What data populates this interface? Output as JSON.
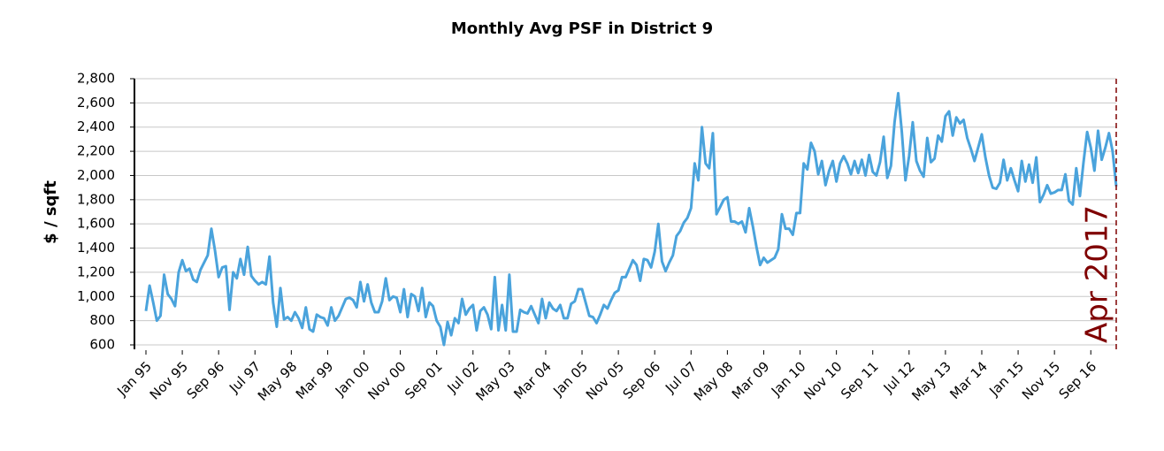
{
  "chart_data": {
    "type": "line",
    "title": "Monthly Avg PSF in District 9",
    "y_label": "$ / sqft",
    "annotation": "Apr 2017",
    "color": "#4aa3dc",
    "annotation_color": "#7f0000",
    "grid": true,
    "ylim": [
      600,
      2800
    ],
    "yticks": [
      600,
      800,
      {
        "value": 1000,
        "label": "1,000"
      },
      {
        "value": 1200,
        "label": "1,200"
      },
      {
        "value": 1400,
        "label": "1,400"
      },
      {
        "value": 1600,
        "label": "1,600"
      },
      {
        "value": 1800,
        "label": "1,800"
      },
      {
        "value": 2000,
        "label": "2,000"
      },
      {
        "value": 2200,
        "label": "2,200"
      },
      {
        "value": 2400,
        "label": "2,400"
      },
      {
        "value": 2600,
        "label": "2,600"
      },
      {
        "value": 2800,
        "label": "2,800"
      }
    ],
    "categories": [
      "Jan 95",
      null,
      null,
      null,
      null,
      null,
      null,
      null,
      null,
      null,
      "Nov 95",
      null,
      null,
      null,
      null,
      null,
      null,
      null,
      null,
      null,
      "Sep 96",
      null,
      null,
      null,
      null,
      null,
      null,
      null,
      null,
      null,
      "Jul 97",
      null,
      null,
      null,
      null,
      null,
      null,
      null,
      null,
      null,
      "May 98",
      null,
      null,
      null,
      null,
      null,
      null,
      null,
      null,
      null,
      "Mar 99",
      null,
      null,
      null,
      null,
      null,
      null,
      null,
      null,
      null,
      "Jan 00",
      null,
      null,
      null,
      null,
      null,
      null,
      null,
      null,
      null,
      "Nov 00",
      null,
      null,
      null,
      null,
      null,
      null,
      null,
      null,
      null,
      "Sep 01",
      null,
      null,
      null,
      null,
      null,
      null,
      null,
      null,
      null,
      "Jul 02",
      null,
      null,
      null,
      null,
      null,
      null,
      null,
      null,
      null,
      "May 03",
      null,
      null,
      null,
      null,
      null,
      null,
      null,
      null,
      null,
      "Mar 04",
      null,
      null,
      null,
      null,
      null,
      null,
      null,
      null,
      null,
      "Jan 05",
      null,
      null,
      null,
      null,
      null,
      null,
      null,
      null,
      null,
      "Nov 05",
      null,
      null,
      null,
      null,
      null,
      null,
      null,
      null,
      null,
      "Sep 06",
      null,
      null,
      null,
      null,
      null,
      null,
      null,
      null,
      null,
      "Jul 07",
      null,
      null,
      null,
      null,
      null,
      null,
      null,
      null,
      null,
      "May 08",
      null,
      null,
      null,
      null,
      null,
      null,
      null,
      null,
      null,
      "Mar 09",
      null,
      null,
      null,
      null,
      null,
      null,
      null,
      null,
      null,
      "Jan 10",
      null,
      null,
      null,
      null,
      null,
      null,
      null,
      null,
      null,
      "Nov 10",
      null,
      null,
      null,
      null,
      null,
      null,
      null,
      null,
      null,
      "Sep 11",
      null,
      null,
      null,
      null,
      null,
      null,
      null,
      null,
      null,
      "Jul 12",
      null,
      null,
      null,
      null,
      null,
      null,
      null,
      null,
      null,
      "May 13",
      null,
      null,
      null,
      null,
      null,
      null,
      null,
      null,
      null,
      "Mar 14",
      null,
      null,
      null,
      null,
      null,
      null,
      null,
      null,
      null,
      "Jan 15",
      null,
      null,
      null,
      null,
      null,
      null,
      null,
      null,
      null,
      "Nov 15",
      null,
      null,
      null,
      null,
      null,
      null,
      null,
      null,
      null,
      "Sep 16",
      null,
      null,
      null,
      null,
      null,
      null,
      null
    ],
    "values": [
      880,
      1090,
      950,
      800,
      840,
      1180,
      1020,
      980,
      920,
      1200,
      1300,
      1210,
      1230,
      1140,
      1120,
      1220,
      1280,
      1340,
      1560,
      1380,
      1160,
      1240,
      1250,
      890,
      1200,
      1150,
      1310,
      1180,
      1410,
      1170,
      1130,
      1100,
      1120,
      1100,
      1330,
      950,
      750,
      1070,
      810,
      830,
      800,
      870,
      820,
      740,
      910,
      730,
      710,
      850,
      830,
      820,
      760,
      910,
      800,
      840,
      910,
      980,
      990,
      970,
      910,
      1120,
      960,
      1100,
      950,
      870,
      870,
      960,
      1150,
      970,
      1000,
      990,
      870,
      1060,
      830,
      1020,
      1000,
      880,
      1070,
      830,
      950,
      920,
      800,
      750,
      600,
      790,
      680,
      820,
      780,
      980,
      850,
      900,
      930,
      720,
      880,
      910,
      850,
      730,
      1160,
      720,
      930,
      720,
      1180,
      710,
      710,
      890,
      870,
      860,
      920,
      850,
      780,
      980,
      820,
      950,
      900,
      880,
      930,
      820,
      820,
      940,
      960,
      1060,
      1060,
      950,
      840,
      830,
      780,
      850,
      930,
      900,
      970,
      1030,
      1050,
      1160,
      1160,
      1230,
      1300,
      1260,
      1130,
      1310,
      1300,
      1240,
      1370,
      1600,
      1290,
      1210,
      1280,
      1340,
      1500,
      1540,
      1610,
      1650,
      1730,
      2100,
      1960,
      2400,
      2100,
      2060,
      2350,
      1680,
      1740,
      1800,
      1820,
      1620,
      1620,
      1600,
      1620,
      1530,
      1730,
      1580,
      1410,
      1260,
      1320,
      1280,
      1300,
      1320,
      1390,
      1680,
      1560,
      1560,
      1510,
      1690,
      1690,
      2100,
      2050,
      2270,
      2200,
      2010,
      2120,
      1920,
      2040,
      2120,
      1950,
      2100,
      2160,
      2100,
      2010,
      2120,
      2020,
      2130,
      2000,
      2170,
      2030,
      2000,
      2110,
      2320,
      1980,
      2080,
      2440,
      2680,
      2360,
      1960,
      2160,
      2440,
      2120,
      2040,
      1990,
      2310,
      2110,
      2140,
      2330,
      2280,
      2490,
      2530,
      2330,
      2480,
      2430,
      2460,
      2310,
      2220,
      2120,
      2230,
      2340,
      2150,
      2000,
      1900,
      1890,
      1940,
      2130,
      1960,
      2060,
      1960,
      1870,
      2120,
      1950,
      2090,
      1940,
      2150,
      1780,
      1840,
      1920,
      1850,
      1860,
      1880,
      1880,
      2010,
      1790,
      1760,
      2060,
      1830,
      2110,
      2360,
      2230,
      2040,
      2370,
      2130,
      2230,
      2350,
      2200,
      1910
    ]
  }
}
